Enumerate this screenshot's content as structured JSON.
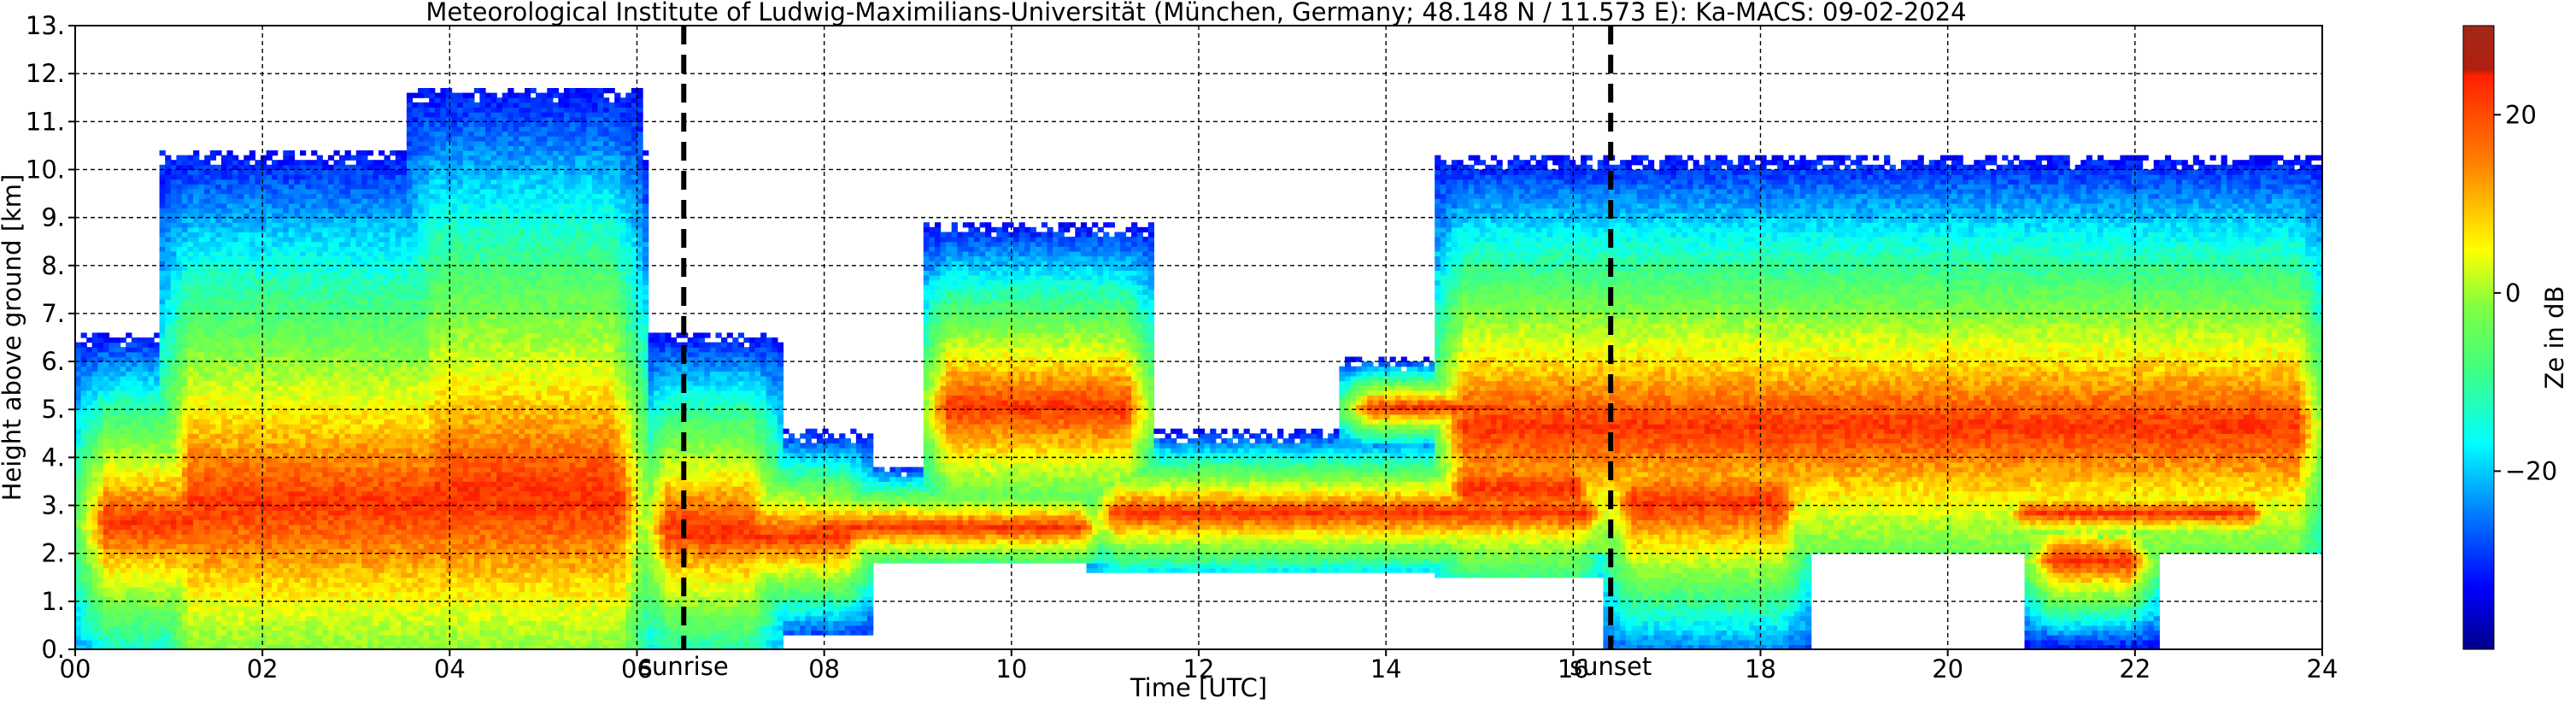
{
  "chart_data": {
    "type": "heatmap",
    "title": "Meteorological Institute of Ludwig-Maximilians-Universität (München, Germany; 48.148 N / 11.573 E):    Ka-MACS: 09-02-2024",
    "xlabel": "Time [UTC]",
    "ylabel": "Height above ground [km]",
    "xlim": [
      0,
      24
    ],
    "ylim": [
      0,
      13
    ],
    "x_ticks": [
      "00",
      "02",
      "04",
      "06",
      "08",
      "10",
      "12",
      "14",
      "16",
      "18",
      "20",
      "22",
      "24"
    ],
    "y_ticks": [
      "0.",
      "1.",
      "2.",
      "3.",
      "4.",
      "5.",
      "6.",
      "7.",
      "8.",
      "9.",
      "10.",
      "11.",
      "12.",
      "13."
    ],
    "grid": true,
    "colorbar": {
      "label": "Ze in dB",
      "range": [
        -40,
        30
      ],
      "ticks": [
        "20",
        "0",
        "−20"
      ],
      "tick_values": [
        20,
        0,
        -20
      ],
      "colors": [
        "#00008b",
        "#0000ff",
        "#0080ff",
        "#00ffff",
        "#40ff80",
        "#80ff40",
        "#ffff00",
        "#ff8000",
        "#ff2000",
        "#b02010"
      ]
    },
    "annotations": [
      {
        "text": "sunrise",
        "x": 6.5
      },
      {
        "text": "sunset",
        "x": 16.4
      }
    ],
    "cloud_regions": [
      {
        "t0": 0.0,
        "t1": 1.5,
        "base": 0.0,
        "top": 6.5,
        "core": 2.6
      },
      {
        "t0": 0.9,
        "t1": 6.1,
        "base": 0.0,
        "top": 10.3,
        "core": 3.0
      },
      {
        "t0": 3.5,
        "t1": 6.0,
        "base": 0.0,
        "top": 11.6,
        "core": 3.3
      },
      {
        "t0": 6.0,
        "t1": 7.5,
        "base": 0.0,
        "top": 6.5,
        "core": 2.5
      },
      {
        "t0": 6.2,
        "t1": 8.5,
        "base": 0.3,
        "top": 4.5,
        "core": 2.3
      },
      {
        "t0": 7.6,
        "t1": 11.0,
        "base": 1.8,
        "top": 3.8,
        "core": 2.5
      },
      {
        "t0": 9.0,
        "t1": 11.5,
        "base": 3.0,
        "top": 8.8,
        "core": 5.0
      },
      {
        "t0": 10.8,
        "t1": 16.4,
        "base": 1.6,
        "top": 4.5,
        "core": 2.8
      },
      {
        "t0": 13.5,
        "t1": 15.5,
        "base": 4.3,
        "top": 6.0,
        "core": 5.0
      },
      {
        "t0": 14.5,
        "t1": 16.3,
        "base": 1.5,
        "top": 6.5,
        "core": 3.3
      },
      {
        "t0": 14.5,
        "t1": 24.0,
        "base": 2.0,
        "top": 10.2,
        "core": 4.6
      },
      {
        "t0": 16.3,
        "t1": 18.5,
        "base": 0.0,
        "top": 6.5,
        "core": 3.0
      },
      {
        "t0": 20.8,
        "t1": 22.2,
        "base": 0.0,
        "top": 2.5,
        "core": 1.8
      },
      {
        "t0": 20.5,
        "t1": 23.5,
        "base": 2.0,
        "top": 3.8,
        "core": 2.8
      }
    ]
  }
}
